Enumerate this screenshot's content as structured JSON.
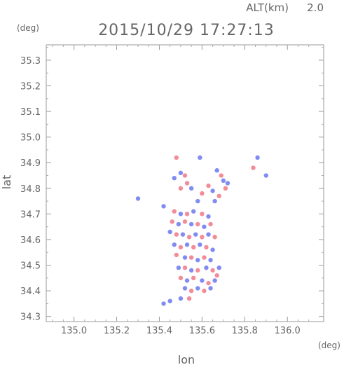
{
  "header": {
    "alt_label": "ALT(km)",
    "alt_value": "2.0",
    "datetime": "2015/10/29 17:27:13"
  },
  "chart_data": {
    "type": "scatter",
    "title": "2015/10/29 17:27:13",
    "xlabel": "lon",
    "ylabel": "lat",
    "x_unit": "(deg)",
    "y_unit": "(deg)",
    "xlim": [
      134.87,
      136.17
    ],
    "ylim": [
      34.28,
      35.36
    ],
    "x_ticks": [
      "135.0",
      "135.2",
      "135.4",
      "135.6",
      "135.8",
      "136.0"
    ],
    "y_ticks": [
      "34.3",
      "34.4",
      "34.5",
      "34.6",
      "34.7",
      "34.8",
      "34.9",
      "35.0",
      "35.1",
      "35.2",
      "35.3"
    ],
    "colors": {
      "positive": "#ee6677",
      "negative": "#5566ee",
      "neutral": "#bbbbdd"
    },
    "points": [
      {
        "lon": 135.48,
        "lat": 34.92,
        "v": 1
      },
      {
        "lon": 135.59,
        "lat": 34.92,
        "v": -1
      },
      {
        "lon": 135.86,
        "lat": 34.92,
        "v": -1
      },
      {
        "lon": 135.84,
        "lat": 34.88,
        "v": 1
      },
      {
        "lon": 135.9,
        "lat": 34.85,
        "v": -1
      },
      {
        "lon": 135.5,
        "lat": 34.86,
        "v": -1
      },
      {
        "lon": 135.52,
        "lat": 34.85,
        "v": 1
      },
      {
        "lon": 135.47,
        "lat": 34.84,
        "v": -1
      },
      {
        "lon": 135.53,
        "lat": 34.82,
        "v": 1
      },
      {
        "lon": 135.55,
        "lat": 34.8,
        "v": -1
      },
      {
        "lon": 135.5,
        "lat": 34.8,
        "v": 1
      },
      {
        "lon": 135.67,
        "lat": 34.87,
        "v": -1
      },
      {
        "lon": 135.69,
        "lat": 34.85,
        "v": 1
      },
      {
        "lon": 135.7,
        "lat": 34.83,
        "v": -1
      },
      {
        "lon": 135.71,
        "lat": 34.8,
        "v": 1
      },
      {
        "lon": 135.72,
        "lat": 34.82,
        "v": -1
      },
      {
        "lon": 135.63,
        "lat": 34.81,
        "v": 1
      },
      {
        "lon": 135.65,
        "lat": 34.79,
        "v": -1
      },
      {
        "lon": 135.68,
        "lat": 34.77,
        "v": 1
      },
      {
        "lon": 135.66,
        "lat": 34.75,
        "v": -1
      },
      {
        "lon": 135.6,
        "lat": 34.78,
        "v": 1
      },
      {
        "lon": 135.58,
        "lat": 34.75,
        "v": -1
      },
      {
        "lon": 135.3,
        "lat": 34.76,
        "v": -1
      },
      {
        "lon": 135.42,
        "lat": 34.73,
        "v": -1
      },
      {
        "lon": 135.47,
        "lat": 34.71,
        "v": 1
      },
      {
        "lon": 135.5,
        "lat": 34.7,
        "v": -1
      },
      {
        "lon": 135.53,
        "lat": 34.7,
        "v": 1
      },
      {
        "lon": 135.56,
        "lat": 34.71,
        "v": -1
      },
      {
        "lon": 135.6,
        "lat": 34.7,
        "v": 1
      },
      {
        "lon": 135.63,
        "lat": 34.69,
        "v": -1
      },
      {
        "lon": 135.46,
        "lat": 34.67,
        "v": 1
      },
      {
        "lon": 135.49,
        "lat": 34.66,
        "v": -1
      },
      {
        "lon": 135.52,
        "lat": 34.67,
        "v": 1
      },
      {
        "lon": 135.55,
        "lat": 34.66,
        "v": -1
      },
      {
        "lon": 135.58,
        "lat": 34.66,
        "v": 1
      },
      {
        "lon": 135.61,
        "lat": 34.65,
        "v": -1
      },
      {
        "lon": 135.64,
        "lat": 34.66,
        "v": 1
      },
      {
        "lon": 135.45,
        "lat": 34.63,
        "v": -1
      },
      {
        "lon": 135.48,
        "lat": 34.62,
        "v": 1
      },
      {
        "lon": 135.51,
        "lat": 34.62,
        "v": -1
      },
      {
        "lon": 135.54,
        "lat": 34.61,
        "v": 1
      },
      {
        "lon": 135.57,
        "lat": 34.62,
        "v": -1
      },
      {
        "lon": 135.6,
        "lat": 34.61,
        "v": 1
      },
      {
        "lon": 135.63,
        "lat": 34.62,
        "v": -1
      },
      {
        "lon": 135.66,
        "lat": 34.61,
        "v": 1
      },
      {
        "lon": 135.47,
        "lat": 34.58,
        "v": -1
      },
      {
        "lon": 135.5,
        "lat": 34.57,
        "v": 1
      },
      {
        "lon": 135.53,
        "lat": 34.58,
        "v": -1
      },
      {
        "lon": 135.56,
        "lat": 34.57,
        "v": 1
      },
      {
        "lon": 135.59,
        "lat": 34.58,
        "v": -1
      },
      {
        "lon": 135.62,
        "lat": 34.57,
        "v": 1
      },
      {
        "lon": 135.65,
        "lat": 34.56,
        "v": -1
      },
      {
        "lon": 135.48,
        "lat": 34.54,
        "v": 1
      },
      {
        "lon": 135.52,
        "lat": 34.53,
        "v": -1
      },
      {
        "lon": 135.55,
        "lat": 34.53,
        "v": 1
      },
      {
        "lon": 135.58,
        "lat": 34.52,
        "v": -1
      },
      {
        "lon": 135.61,
        "lat": 34.53,
        "v": 1
      },
      {
        "lon": 135.64,
        "lat": 34.52,
        "v": -1
      },
      {
        "lon": 135.49,
        "lat": 34.49,
        "v": -1
      },
      {
        "lon": 135.52,
        "lat": 34.49,
        "v": 1
      },
      {
        "lon": 135.55,
        "lat": 34.48,
        "v": -1
      },
      {
        "lon": 135.58,
        "lat": 34.48,
        "v": 1
      },
      {
        "lon": 135.62,
        "lat": 34.49,
        "v": -1
      },
      {
        "lon": 135.65,
        "lat": 34.48,
        "v": 1
      },
      {
        "lon": 135.68,
        "lat": 34.49,
        "v": -1
      },
      {
        "lon": 135.67,
        "lat": 34.46,
        "v": 1
      },
      {
        "lon": 135.5,
        "lat": 34.45,
        "v": 1
      },
      {
        "lon": 135.53,
        "lat": 34.44,
        "v": -1
      },
      {
        "lon": 135.56,
        "lat": 34.45,
        "v": 1
      },
      {
        "lon": 135.6,
        "lat": 34.44,
        "v": -1
      },
      {
        "lon": 135.63,
        "lat": 34.43,
        "v": 1
      },
      {
        "lon": 135.66,
        "lat": 34.44,
        "v": -1
      },
      {
        "lon": 135.52,
        "lat": 34.41,
        "v": -1
      },
      {
        "lon": 135.55,
        "lat": 34.4,
        "v": 1
      },
      {
        "lon": 135.58,
        "lat": 34.41,
        "v": -1
      },
      {
        "lon": 135.61,
        "lat": 34.4,
        "v": 1
      },
      {
        "lon": 135.64,
        "lat": 34.41,
        "v": -1
      },
      {
        "lon": 135.5,
        "lat": 34.37,
        "v": -1
      },
      {
        "lon": 135.54,
        "lat": 34.37,
        "v": 1
      },
      {
        "lon": 135.45,
        "lat": 34.36,
        "v": -1
      },
      {
        "lon": 135.42,
        "lat": 34.35,
        "v": -1
      }
    ]
  }
}
